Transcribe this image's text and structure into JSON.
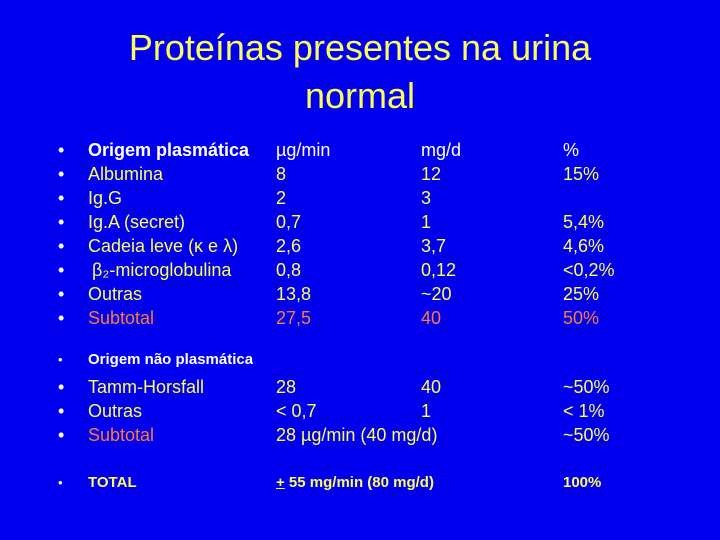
{
  "title_line1": "Proteínas presentes na urina",
  "title_line2": "normal",
  "plasma": {
    "header": {
      "label": "Origem plasmática",
      "ug": "µg/min",
      "mg": "mg/d",
      "pct": "%"
    },
    "rows": [
      {
        "label": "Albumina",
        "ug": "8",
        "mg": "12",
        "pct": "15%"
      },
      {
        "label": "Ig.G",
        "ug": "2",
        "mg": "3",
        "pct": ""
      },
      {
        "label": "Ig.A (secret)",
        "ug": "0,7",
        "mg": "1",
        "pct": "5,4%"
      },
      {
        "label": "Cadeia leve (κ e λ)",
        "ug": "2,6",
        "mg": "3,7",
        "pct": "4,6%"
      },
      {
        "label": "β₂-microglobulina",
        "ug": "0,8",
        "mg": "0,12",
        "pct": "<0,2%"
      },
      {
        "label": "Outras",
        "ug": "13,8",
        "mg": "~20",
        "pct": "25%"
      },
      {
        "label": "Subtotal",
        "ug": "27,5",
        "mg": "40",
        "pct": "50%"
      }
    ]
  },
  "nonplasma": {
    "header": "Origem não plasmática",
    "rows": [
      {
        "label": "Tamm-Horsfall",
        "ug": "28",
        "mg": "40",
        "pct": "~50%"
      },
      {
        "label": "Outras",
        "ug": "< 0,7",
        "mg": "1",
        "pct": "< 1%"
      },
      {
        "label": "Subtotal",
        "ug": "28 µg/min (40 mg/d)",
        "pct": "~50%"
      }
    ]
  },
  "total": {
    "label": "TOTAL",
    "pm": "+",
    "value": " 55 mg/min (80 mg/d)",
    "pct": "100%"
  },
  "bullet": "•"
}
